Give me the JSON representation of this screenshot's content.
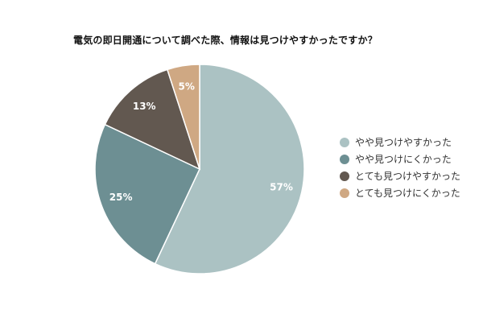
{
  "chart_data": {
    "type": "pie",
    "title": "電気の即日開通について調べた際、情報は見つけやすかったですか？",
    "categories": [
      "やや見つけやすかった",
      "やや見つけにくかった",
      "とても見つけやすかった",
      "とても見つけにくかった"
    ],
    "values": [
      57,
      25,
      13,
      5
    ],
    "value_labels": [
      "57%",
      "25%",
      "13%",
      "5%"
    ],
    "colors": [
      "#abc2c3",
      "#6d8f93",
      "#625850",
      "#cfa883"
    ],
    "start_angle_deg": 0,
    "direction": "clockwise",
    "legend_position": "right"
  }
}
